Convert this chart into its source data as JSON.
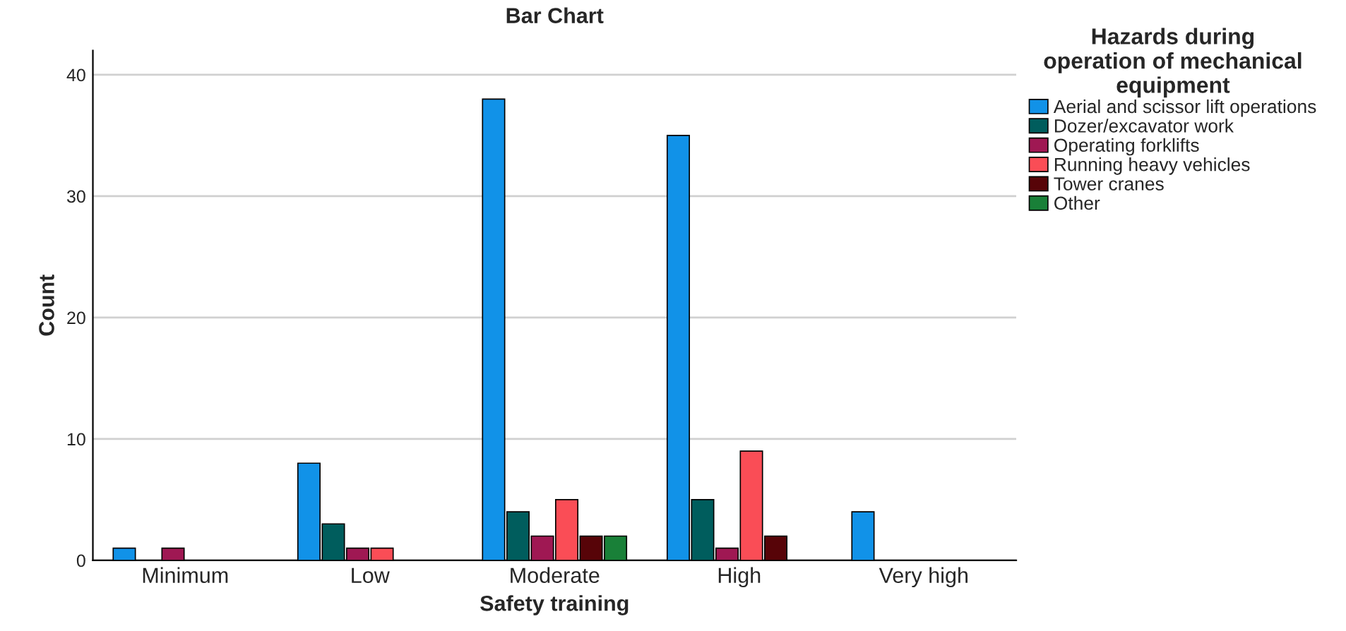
{
  "chart_data": {
    "type": "bar",
    "title": "Bar Chart",
    "xlabel": "Safety training",
    "ylabel": "Count",
    "legend_title": "Hazards during\noperation of mechanical\nequipment",
    "categories": [
      "Minimum",
      "Low",
      "Moderate",
      "High",
      "Very high"
    ],
    "series": [
      {
        "name": "Aerial and scissor lift operations",
        "color": "#1192e8",
        "values": [
          1,
          8,
          38,
          35,
          4
        ]
      },
      {
        "name": "Dozer/excavator work",
        "color": "#005d5d",
        "values": [
          null,
          3,
          4,
          5,
          null
        ]
      },
      {
        "name": "Operating forklifts",
        "color": "#9f1853",
        "values": [
          1,
          1,
          2,
          1,
          null
        ]
      },
      {
        "name": "Running heavy vehicles",
        "color": "#fa4d56",
        "values": [
          null,
          1,
          5,
          9,
          null
        ]
      },
      {
        "name": "Tower cranes",
        "color": "#570408",
        "values": [
          null,
          null,
          2,
          2,
          null
        ]
      },
      {
        "name": "Other",
        "color": "#198038",
        "values": [
          null,
          null,
          2,
          null,
          null
        ]
      }
    ],
    "ylim": [
      0,
      42
    ],
    "yticks": [
      0,
      10,
      20,
      30,
      40
    ],
    "grid": "y",
    "legend": "top right"
  }
}
